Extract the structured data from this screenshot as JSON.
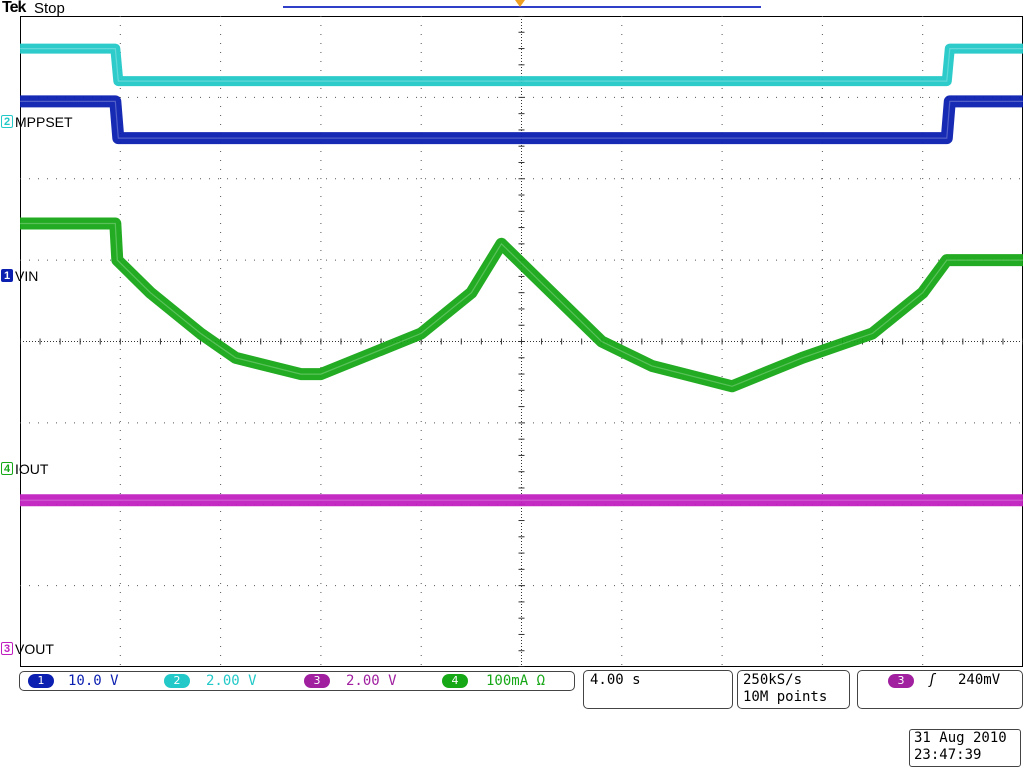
{
  "header": {
    "brand": "Tek",
    "acquisition_state": "Stop"
  },
  "colors": {
    "ch1": "#0b1fb0",
    "ch2": "#23c8c8",
    "ch3": "#c020c0",
    "ch4": "#17a817",
    "trigger_marker": "#f0a020",
    "record_bar": "#2f3fc8"
  },
  "channels": [
    {
      "id": "1",
      "name": "VIN",
      "scale": "10.0 V"
    },
    {
      "id": "2",
      "name": "MPPSET",
      "scale": "2.00 V"
    },
    {
      "id": "3",
      "name": "VOUT",
      "scale": "2.00 V"
    },
    {
      "id": "4",
      "name": "IOUT",
      "scale": "100mA Ω"
    }
  ],
  "timebase": {
    "scale": "4.00 s"
  },
  "acquisition": {
    "sample_rate": "250kS/s",
    "record_length": "10M points"
  },
  "trigger": {
    "source": "3",
    "slope_icon": "rising-edge-icon",
    "slope_glyph": "ʃ",
    "level": "240mV"
  },
  "timestamp": {
    "date": "31 Aug 2010",
    "time": "23:47:39"
  },
  "chart_data": {
    "type": "line",
    "title": "",
    "xlabel": "",
    "ylabel": "",
    "grid": true,
    "x_divisions": 10,
    "y_divisions": 8,
    "x_units": "div",
    "y_units": "div",
    "xlim": [
      0,
      10
    ],
    "ylim": [
      0,
      8
    ],
    "series": [
      {
        "name": "MPPSET",
        "x": [
          0,
          0.95,
          0.98,
          9.24,
          9.27,
          10
        ],
        "y": [
          7.6,
          7.6,
          7.2,
          7.2,
          7.6,
          7.6
        ]
      },
      {
        "name": "VIN",
        "x": [
          0,
          0.95,
          0.98,
          9.24,
          9.27,
          10
        ],
        "y": [
          6.95,
          6.95,
          6.5,
          6.5,
          6.95,
          6.95
        ]
      },
      {
        "name": "IOUT",
        "x": [
          0,
          0.95,
          0.97,
          1.3,
          1.8,
          2.15,
          2.8,
          3.0,
          4.0,
          4.5,
          4.8,
          5.8,
          6.3,
          7.1,
          7.8,
          8.5,
          9.0,
          9.24,
          10
        ],
        "y": [
          5.45,
          5.45,
          5.0,
          4.6,
          4.1,
          3.8,
          3.6,
          3.6,
          4.1,
          4.6,
          5.2,
          4.0,
          3.7,
          3.45,
          3.8,
          4.1,
          4.6,
          5.0,
          5.0
        ]
      },
      {
        "name": "VOUT",
        "x": [
          0,
          10
        ],
        "y": [
          2.05,
          2.05
        ]
      }
    ]
  }
}
